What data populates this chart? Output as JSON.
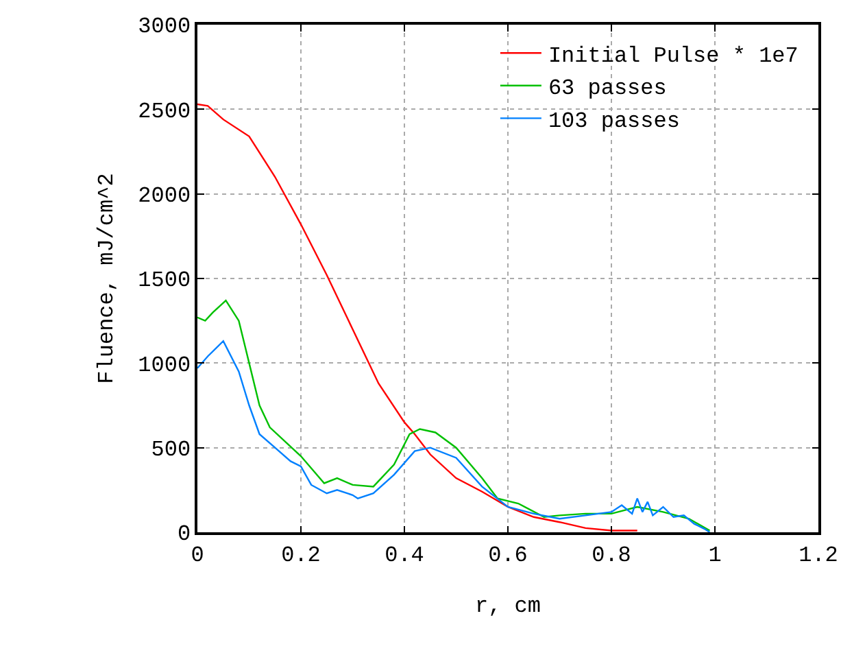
{
  "chart_data": {
    "type": "line",
    "xlabel": "r, cm",
    "ylabel": "Fluence, mJ/cm^2",
    "xlim": [
      0,
      1.2
    ],
    "xticks": [
      0,
      0.2,
      0.4,
      0.6,
      0.8,
      1,
      1.2
    ],
    "ylim": [
      0,
      3000
    ],
    "yticks": [
      0,
      500,
      1000,
      1500,
      2000,
      2500,
      3000
    ],
    "grid": true,
    "legend": "top right",
    "line_style": "solid",
    "marker": "none",
    "series": [
      {
        "name": "Initial Pulse * 1e7",
        "color": "#ff0000",
        "x": [
          0,
          0.02,
          0.05,
          0.1,
          0.15,
          0.2,
          0.25,
          0.3,
          0.35,
          0.4,
          0.42,
          0.45,
          0.5,
          0.55,
          0.6,
          0.65,
          0.7,
          0.75,
          0.8,
          0.85
        ],
        "values": [
          2530,
          2520,
          2440,
          2340,
          2100,
          1820,
          1520,
          1200,
          880,
          650,
          580,
          460,
          320,
          240,
          150,
          90,
          60,
          25,
          10,
          10
        ]
      },
      {
        "name": "63 passes",
        "color": "#00c000",
        "x": [
          0,
          0.015,
          0.03,
          0.055,
          0.08,
          0.1,
          0.12,
          0.14,
          0.2,
          0.245,
          0.27,
          0.3,
          0.34,
          0.38,
          0.41,
          0.43,
          0.46,
          0.5,
          0.55,
          0.58,
          0.62,
          0.67,
          0.7,
          0.75,
          0.8,
          0.85,
          0.9,
          0.95,
          0.99
        ],
        "values": [
          1270,
          1250,
          1300,
          1370,
          1250,
          1000,
          750,
          620,
          450,
          290,
          320,
          280,
          270,
          400,
          580,
          610,
          590,
          500,
          320,
          200,
          170,
          90,
          100,
          110,
          110,
          150,
          120,
          80,
          10
        ]
      },
      {
        "name": "103 passes",
        "color": "#0080ff",
        "x": [
          0,
          0.02,
          0.05,
          0.08,
          0.1,
          0.12,
          0.15,
          0.18,
          0.2,
          0.22,
          0.25,
          0.27,
          0.3,
          0.31,
          0.34,
          0.38,
          0.42,
          0.45,
          0.5,
          0.55,
          0.6,
          0.65,
          0.7,
          0.75,
          0.8,
          0.82,
          0.84,
          0.85,
          0.86,
          0.87,
          0.88,
          0.9,
          0.92,
          0.94,
          0.96,
          0.98,
          0.99
        ],
        "values": [
          970,
          1040,
          1130,
          950,
          750,
          580,
          500,
          420,
          390,
          280,
          230,
          250,
          220,
          200,
          230,
          340,
          480,
          500,
          440,
          270,
          150,
          110,
          80,
          100,
          120,
          160,
          110,
          200,
          120,
          180,
          100,
          150,
          90,
          100,
          50,
          20,
          0
        ]
      }
    ]
  }
}
